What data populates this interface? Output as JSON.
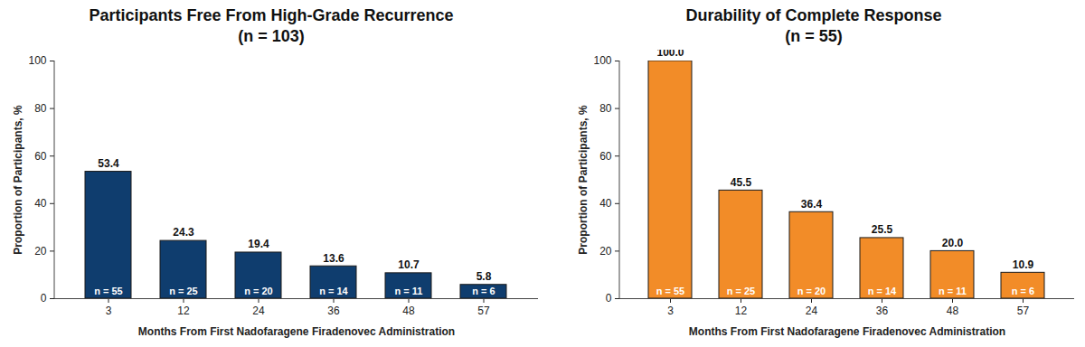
{
  "chart_data": [
    {
      "type": "bar",
      "title": "Participants Free From High-Grade Recurrence",
      "subtitle": "(n = 103)",
      "x_label": "Months From First Nadofaragene Firadenovec Administration",
      "y_label": "Proportion of Participants, %",
      "categories": [
        "3",
        "12",
        "24",
        "36",
        "48",
        "57"
      ],
      "values": [
        53.4,
        24.3,
        19.4,
        13.6,
        10.7,
        5.8
      ],
      "value_labels": [
        "53.4",
        "24.3",
        "19.4",
        "13.6",
        "10.7",
        "5.8"
      ],
      "annotations": [
        "n = 55",
        "n = 25",
        "n = 20",
        "n = 14",
        "n = 11",
        "n = 6"
      ],
      "color": "#0f3d6e",
      "ylim": [
        0,
        100
      ],
      "yticks": [
        0,
        20,
        40,
        60,
        80,
        100
      ],
      "grid": false,
      "data_labels": true
    },
    {
      "type": "bar",
      "title": "Durability of Complete Response",
      "subtitle": "(n = 55)",
      "x_label": "Months From First Nadofaragene Firadenovec Administration",
      "y_label": "Proportion of Participants, %",
      "categories": [
        "3",
        "12",
        "24",
        "36",
        "48",
        "57"
      ],
      "values": [
        100.0,
        45.5,
        36.4,
        25.5,
        20.0,
        10.9
      ],
      "value_labels": [
        "100.0",
        "45.5",
        "36.4",
        "25.5",
        "20.0",
        "10.9"
      ],
      "annotations": [
        "n = 55",
        "n = 25",
        "n = 20",
        "n = 14",
        "n = 11",
        "n = 6"
      ],
      "color": "#f28c28",
      "ylim": [
        0,
        100
      ],
      "yticks": [
        0,
        20,
        40,
        60,
        80,
        100
      ],
      "grid": false,
      "data_labels": true
    }
  ]
}
